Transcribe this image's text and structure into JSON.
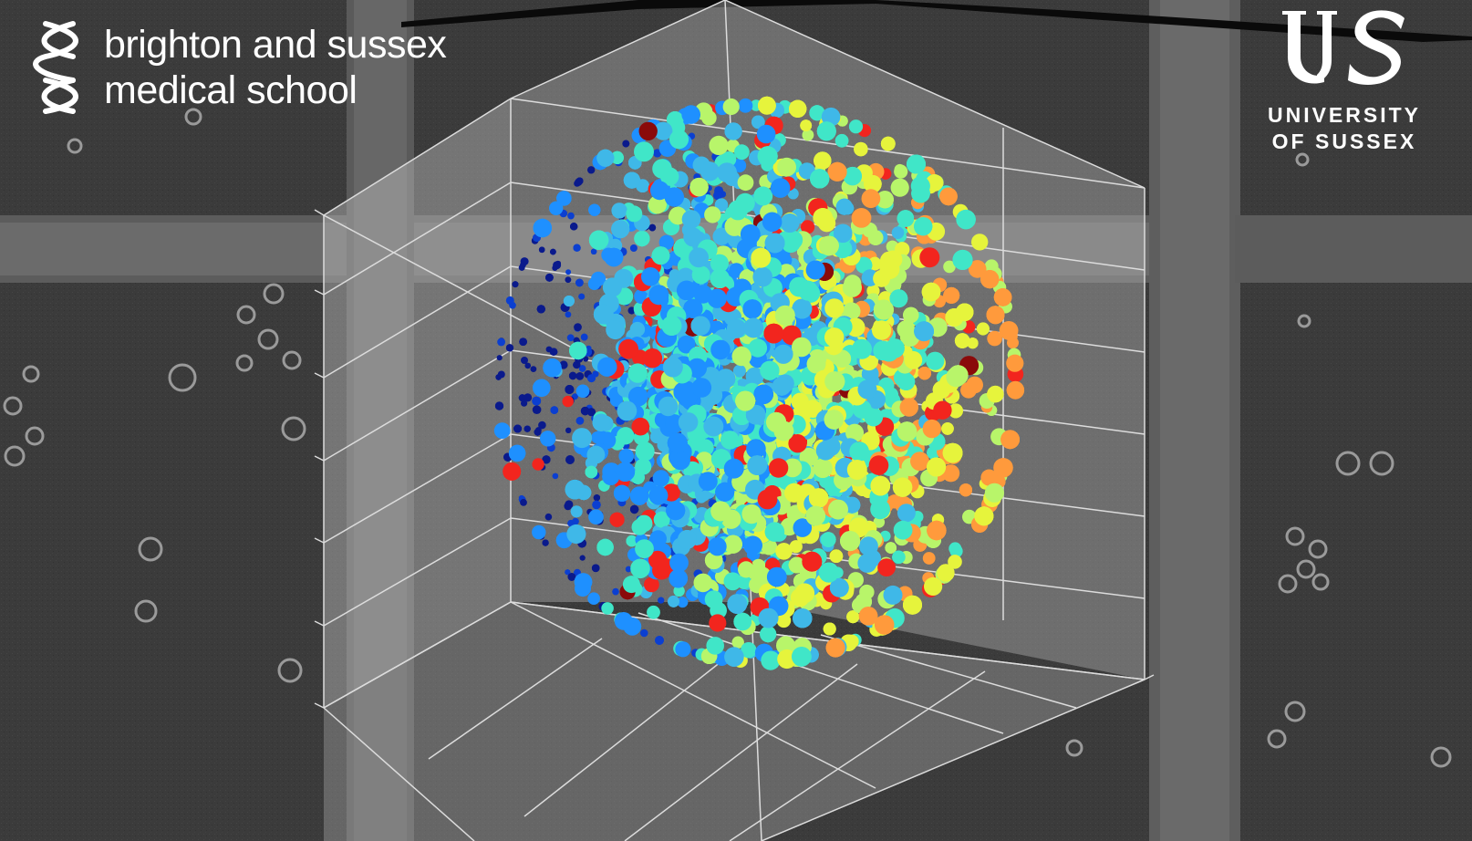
{
  "logos": {
    "left": {
      "name": "brighton and sussex medical school",
      "lines": [
        "brighton and sussex",
        "medical school"
      ],
      "icon": "helix-icon"
    },
    "right": {
      "monogram": "US",
      "lines": [
        "UNIVERSITY",
        "OF SUSSEX"
      ],
      "icon": "us-monogram-icon"
    }
  },
  "colors": {
    "background_dark": "#3a3a3a",
    "grid_light": "#8a8a8a",
    "cube_fill": "#b8b8b8",
    "palette": [
      "#0a1a8c",
      "#0b3fd0",
      "#1e90ff",
      "#3fb8e8",
      "#40e6c8",
      "#b8f56a",
      "#e6f43c",
      "#ff9a3c",
      "#f2251e",
      "#8a0a0a"
    ]
  },
  "chart_data": {
    "type": "scatter",
    "title": "",
    "xlabel": "",
    "ylabel": "",
    "zlabel": "",
    "grid": true,
    "legend": "none",
    "projection": "3d",
    "point_count_estimate": 5000,
    "color_scale": "jet"
  }
}
